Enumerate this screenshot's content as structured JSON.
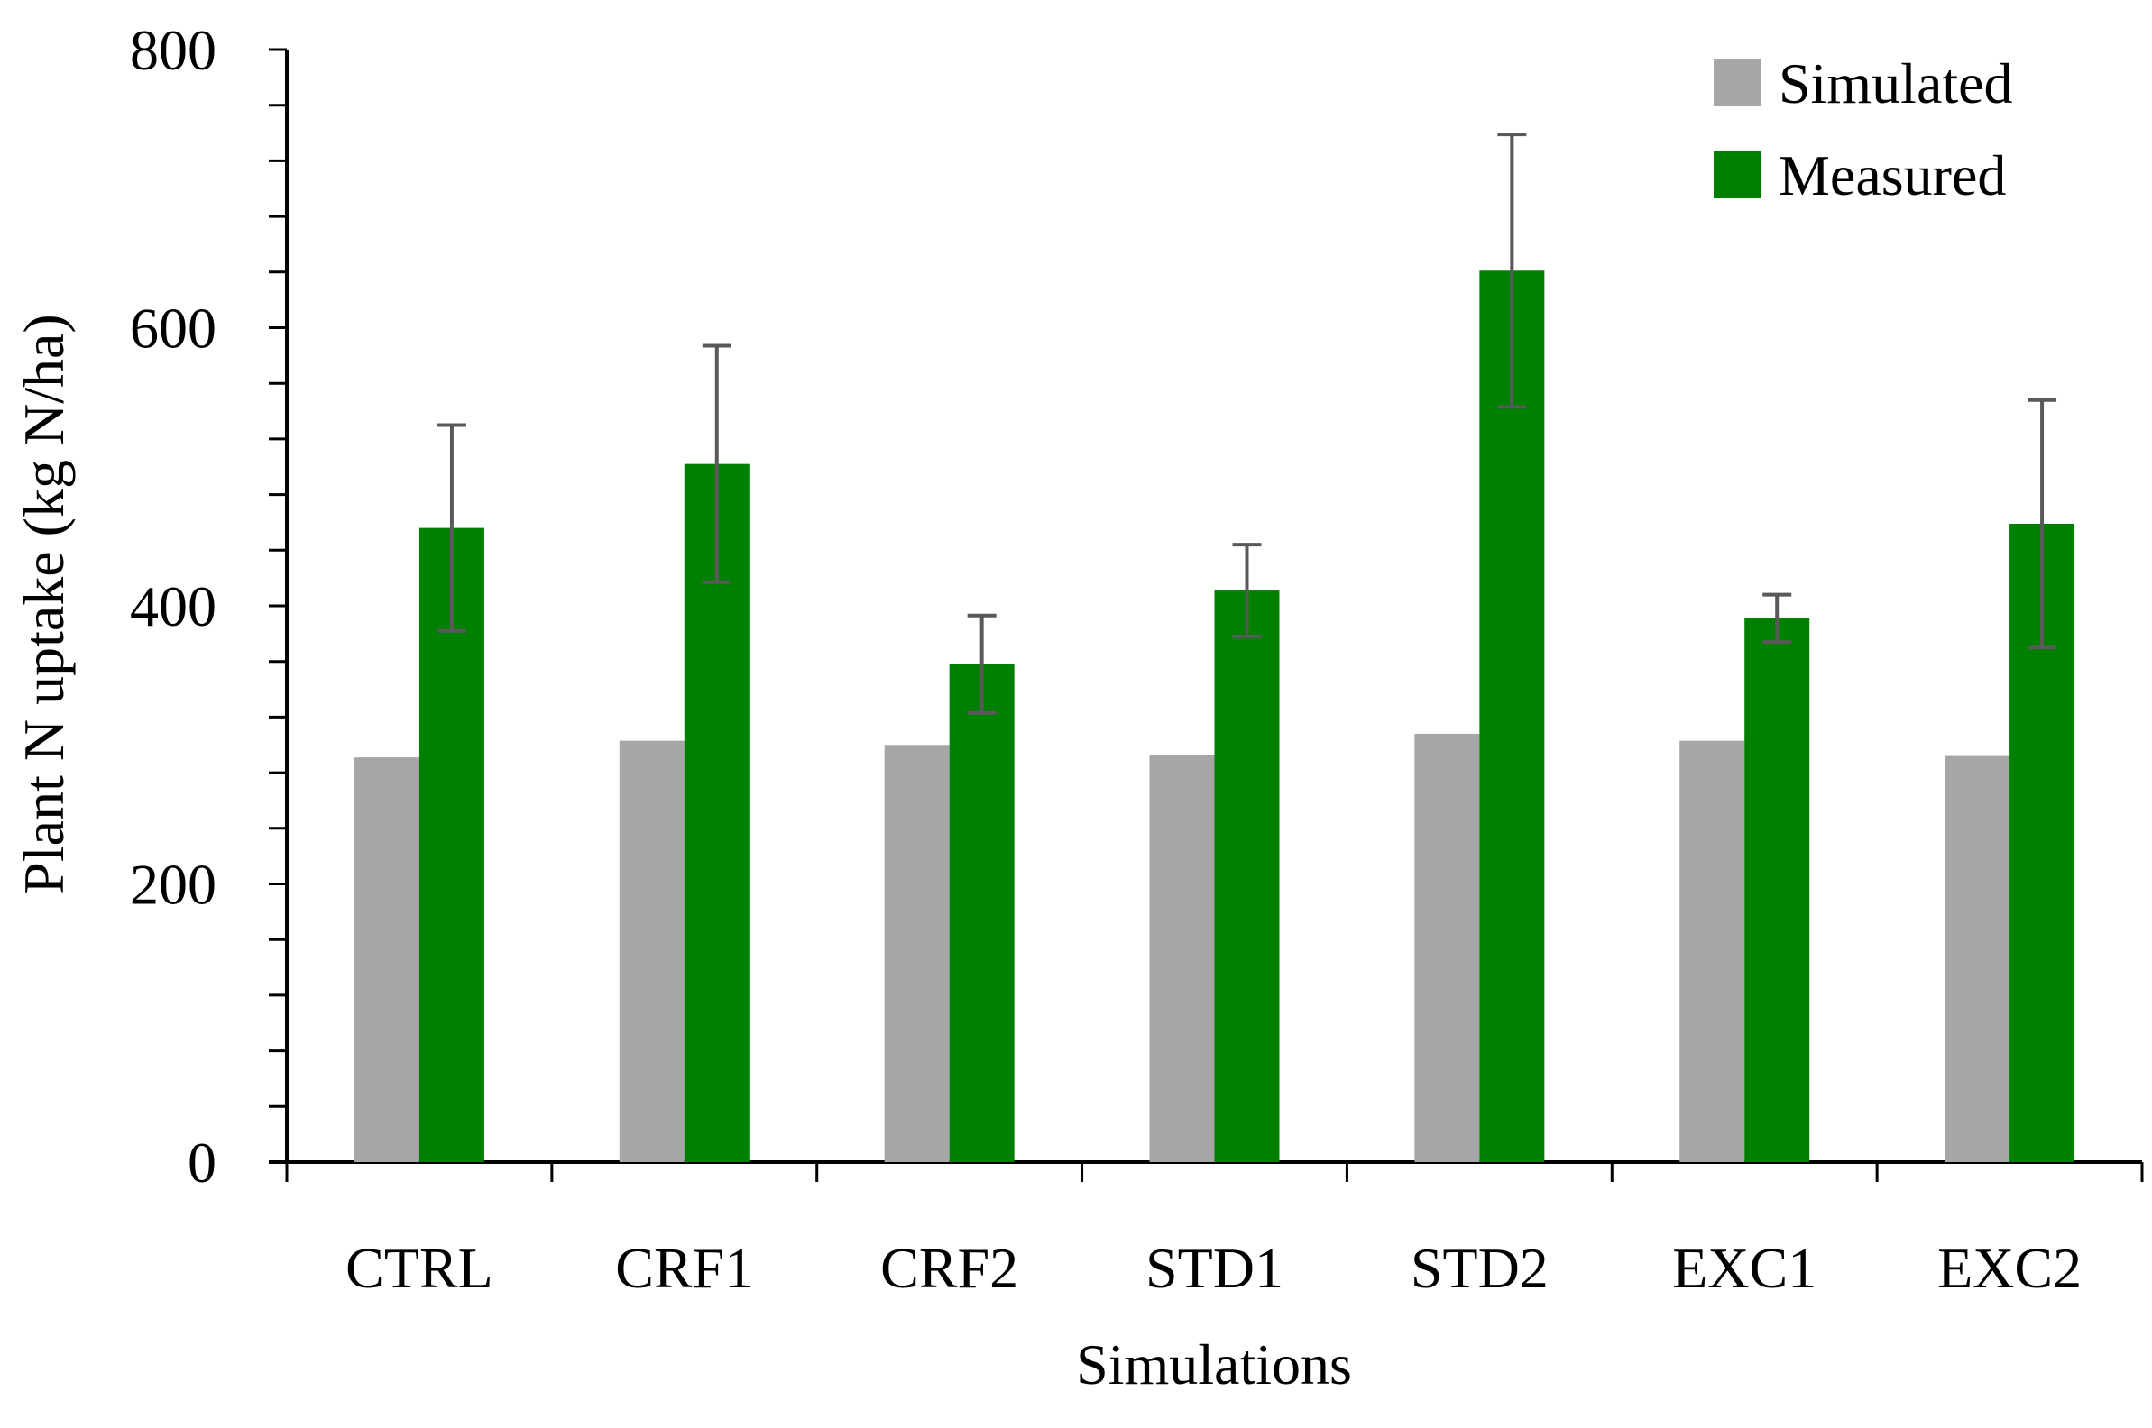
{
  "chart_data": {
    "type": "bar",
    "title": "",
    "xlabel": "Simulations",
    "ylabel": "Plant N uptake (kg N/ha)",
    "ylim": [
      0,
      800
    ],
    "yticks": [
      0,
      200,
      400,
      600,
      800
    ],
    "minor_tick_step": 40,
    "grid": false,
    "legend_position": "top-right",
    "categories": [
      "CTRL",
      "CRF1",
      "CRF2",
      "STD1",
      "STD2",
      "EXC1",
      "EXC2"
    ],
    "series": [
      {
        "name": "Simulated",
        "color": "#a6a6a6",
        "values": [
          291,
          303,
          300,
          293,
          308,
          303,
          292
        ]
      },
      {
        "name": "Measured",
        "color": "#008000",
        "values": [
          456,
          502,
          358,
          411,
          641,
          391,
          459
        ],
        "error": [
          74,
          85,
          35,
          33,
          98,
          17,
          89
        ]
      }
    ],
    "error_bar_color": "#595959"
  }
}
